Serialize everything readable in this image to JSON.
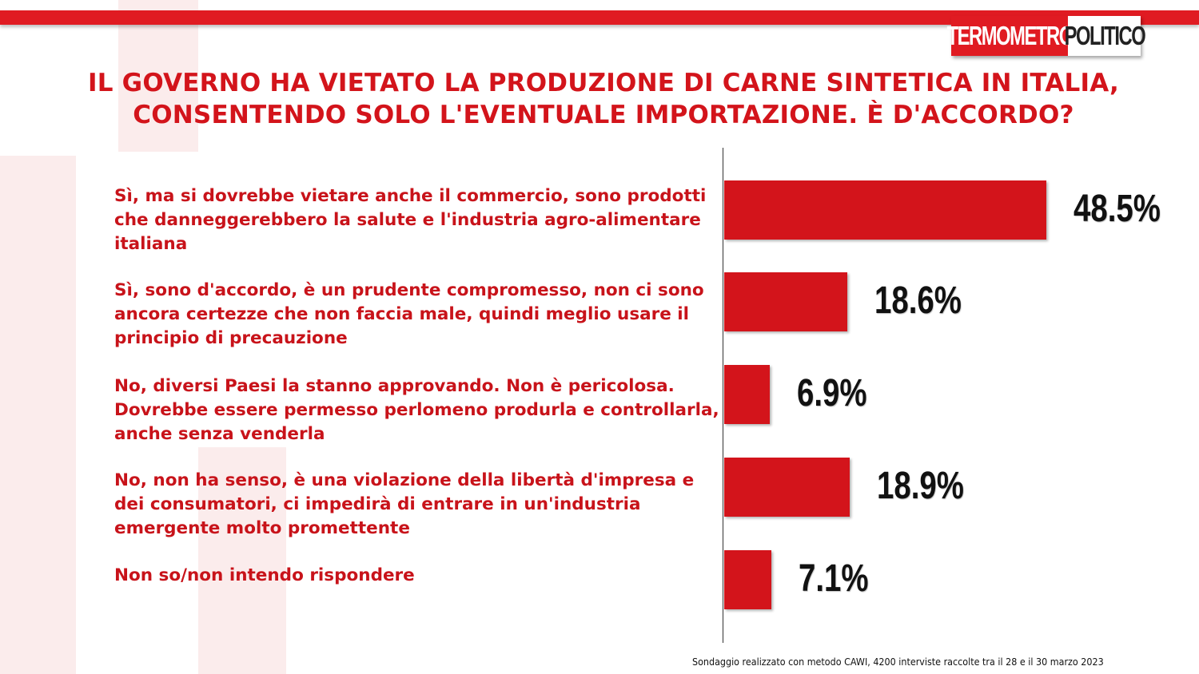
{
  "brand": {
    "logo_left": "TERMOMETRO",
    "logo_right": "POLITICO",
    "colors": {
      "accent": "#e01b22",
      "bar": "#d3141b",
      "label_text": "#c8131a"
    }
  },
  "chart_data": {
    "type": "bar",
    "orientation": "horizontal",
    "title": "IL GOVERNO HA VIETATO LA PRODUZIONE DI CARNE SINTETICA IN ITALIA, CONSENTENDO SOLO L'EVENTUALE IMPORTAZIONE. È D'ACCORDO?",
    "categories": [
      "Sì, ma si dovrebbe vietare anche il commercio, sono prodotti che danneggerebbero la salute e l'industria agro-alimentare italiana",
      "Sì, sono d'accordo, è un prudente compromesso, non ci sono ancora certezze che non faccia male, quindi meglio usare il principio di precauzione",
      "No, diversi Paesi la stanno approvando. Non è pericolosa. Dovrebbe essere permesso perlomeno produrla e controllarla, anche senza venderla",
      "No, non ha senso, è una violazione della libertà  d'impresa e dei consumatori, ci impedirà  di entrare in un'industria emergente molto promettente",
      "Non so/non intendo rispondere"
    ],
    "values": [
      48.5,
      18.6,
      6.9,
      18.9,
      7.1
    ],
    "value_labels": [
      "48.5%",
      "18.6%",
      "6.9%",
      "18.9%",
      "7.1%"
    ],
    "unit": "%",
    "xlim": [
      0,
      100
    ],
    "grid": false,
    "legend": "none"
  },
  "footer": "Sondaggio realizzato con metodo CAWI, 4200 interviste raccolte tra il 28 e il 30 marzo 2023"
}
